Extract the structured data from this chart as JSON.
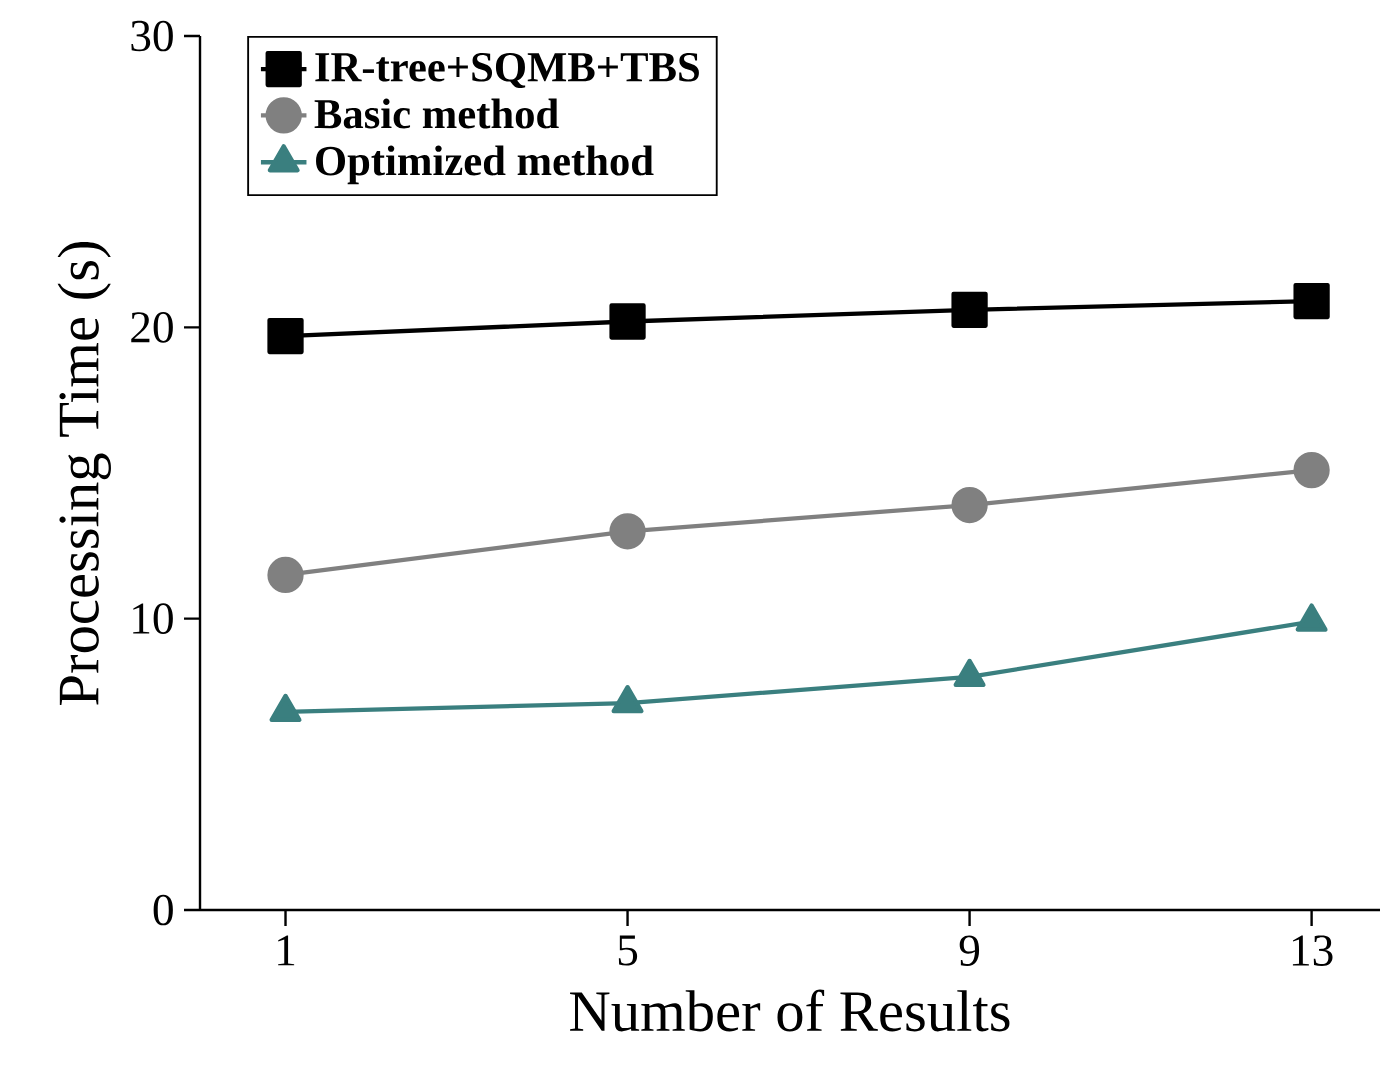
{
  "chart_data": {
    "type": "line",
    "xlabel": "Number of Results",
    "ylabel": "Processing Time (s)",
    "x": [
      1,
      5,
      9,
      13
    ],
    "xlim": [
      0,
      13.8
    ],
    "xticks": [
      1,
      5,
      9,
      13
    ],
    "ylim": [
      0,
      30
    ],
    "yticks": [
      0,
      10,
      20,
      30
    ],
    "legend": "top left",
    "line_style": "solid",
    "series": [
      {
        "name": "IR-tree+SQMB+TBS",
        "color": "#000000",
        "marker": "square",
        "values": [
          19.7,
          20.2,
          20.6,
          20.9
        ]
      },
      {
        "name": "Basic method",
        "color": "#808080",
        "marker": "circle",
        "values": [
          11.5,
          13.0,
          13.9,
          15.1
        ]
      },
      {
        "name": "Optimized method",
        "color": "#3a7f7f",
        "marker": "triangle",
        "values": [
          6.8,
          7.1,
          8.0,
          9.9
        ]
      }
    ]
  }
}
